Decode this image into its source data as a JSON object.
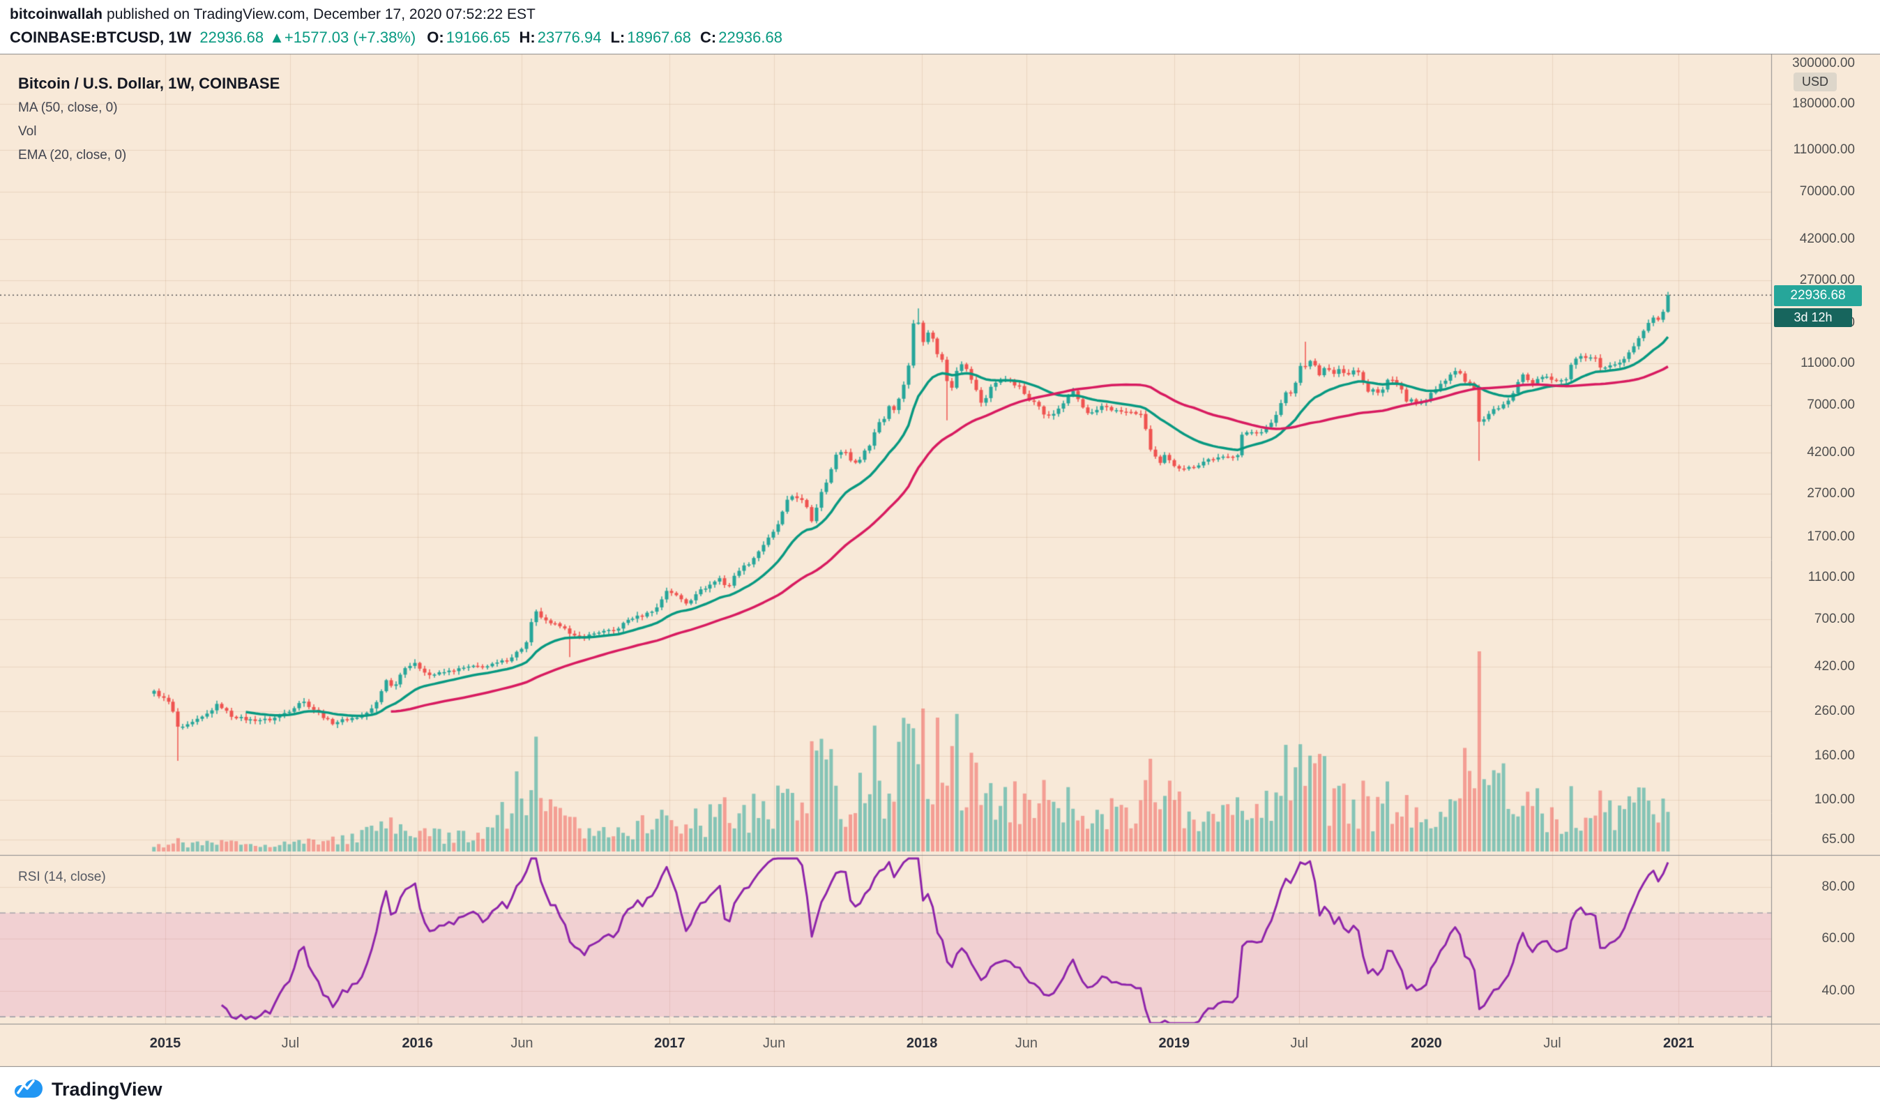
{
  "header": {
    "author": "bitcoinwallah",
    "published_text": "published on TradingView.com, December 17, 2020 07:52:22 EST",
    "symbol_text": "COINBASE:BTCUSD, 1W",
    "last_price": "22936.68",
    "arrow": "▲",
    "change_text": "+1577.03 (+7.38%)",
    "ohlc": [
      {
        "label": "O:",
        "value": "19166.65"
      },
      {
        "label": "H:",
        "value": "23776.94"
      },
      {
        "label": "L:",
        "value": "18967.68"
      },
      {
        "label": "C:",
        "value": "22936.68"
      }
    ]
  },
  "legend": {
    "title": "Bitcoin / U.S. Dollar, 1W, COINBASE",
    "studies": [
      "MA (50, close, 0)",
      "Vol",
      "EMA (20, close, 0)"
    ]
  },
  "rsi_pane": {
    "label": "RSI (14, close)"
  },
  "price_axis": {
    "currency": "USD"
  },
  "badges": {
    "price": "22936.68",
    "countdown": "3d 12h"
  },
  "footer": {
    "brand": "TradingView"
  },
  "colors": {
    "bg": "#f8e9d8",
    "grid": "rgba(136,85,34,0.12)",
    "frame": "#8c8c8c",
    "up": "#26a69a",
    "down": "#ef5350",
    "vol_up": "rgba(38,166,154,0.55)",
    "vol_down": "rgba(239,83,80,0.5)",
    "ema": "#089981",
    "ma": "#d81b60",
    "rsi": "#8e24aa",
    "rsi_band_fill": "rgba(208,92,183,0.18)",
    "band_line": "#9598a1",
    "dotted_line": "#555555",
    "accent_teal": "#089981",
    "badge_price_bg": "#26a69a",
    "badge_countdown_bg": "#17655d",
    "axis_text": "#4f4f4f",
    "logo_blue": "#2196f3"
  },
  "chart_data": {
    "type": "candlestick",
    "symbol": "COINBASE:BTCUSD",
    "interval": "1W",
    "log_scale": true,
    "panes": [
      "price+volume+MA50+EMA20",
      "RSI14"
    ],
    "last_candle": {
      "open": 19166.65,
      "high": 23776.94,
      "low": 18967.68,
      "close": 22936.68
    },
    "last_change": {
      "abs": 1577.03,
      "pct": 7.38
    },
    "series_start": 2014.955,
    "series_end": 2020.962,
    "price_axis_ticks": [
      300000,
      180000,
      110000,
      70000,
      42000,
      27000,
      17000,
      11000,
      7000,
      4200,
      2700,
      1700,
      1100,
      700,
      420,
      260,
      160,
      100,
      65
    ],
    "rsi": {
      "period": 14,
      "band": [
        30,
        70
      ],
      "ticks": [
        80,
        60,
        40
      ]
    },
    "time_axis": [
      {
        "label": "2015",
        "t": 2015.0,
        "major": true
      },
      {
        "label": "Jul",
        "t": 2015.496,
        "major": false
      },
      {
        "label": "2016",
        "t": 2016.0,
        "major": true
      },
      {
        "label": "Jun",
        "t": 2016.414,
        "major": false
      },
      {
        "label": "2017",
        "t": 2017.0,
        "major": true
      },
      {
        "label": "Jun",
        "t": 2017.414,
        "major": false
      },
      {
        "label": "2018",
        "t": 2018.0,
        "major": true
      },
      {
        "label": "Jun",
        "t": 2018.414,
        "major": false
      },
      {
        "label": "2019",
        "t": 2019.0,
        "major": true
      },
      {
        "label": "Jul",
        "t": 2019.496,
        "major": false
      },
      {
        "label": "2020",
        "t": 2020.0,
        "major": true
      },
      {
        "label": "Jul",
        "t": 2020.499,
        "major": false
      },
      {
        "label": "2021",
        "t": 2021.0,
        "major": true
      }
    ],
    "weekly_close_anchors": [
      [
        2014.955,
        320
      ],
      [
        2015.02,
        282
      ],
      [
        2015.055,
        212
      ],
      [
        2015.1,
        226
      ],
      [
        2015.16,
        248
      ],
      [
        2015.21,
        281
      ],
      [
        2015.26,
        247
      ],
      [
        2015.33,
        236
      ],
      [
        2015.42,
        237
      ],
      [
        2015.5,
        264
      ],
      [
        2015.54,
        292
      ],
      [
        2015.6,
        258
      ],
      [
        2015.66,
        228
      ],
      [
        2015.72,
        238
      ],
      [
        2015.78,
        246
      ],
      [
        2015.83,
        272
      ],
      [
        2015.86,
        330
      ],
      [
        2015.88,
        376
      ],
      [
        2015.9,
        328
      ],
      [
        2015.95,
        418
      ],
      [
        2015.99,
        431
      ],
      [
        2016.05,
        382
      ],
      [
        2016.12,
        398
      ],
      [
        2016.2,
        417
      ],
      [
        2016.28,
        421
      ],
      [
        2016.36,
        453
      ],
      [
        2016.43,
        532
      ],
      [
        2016.455,
        700
      ],
      [
        2016.47,
        752
      ],
      [
        2016.52,
        662
      ],
      [
        2016.58,
        655
      ],
      [
        2016.61,
        580
      ],
      [
        2016.66,
        577
      ],
      [
        2016.72,
        610
      ],
      [
        2016.78,
        616
      ],
      [
        2016.84,
        702
      ],
      [
        2016.9,
        731
      ],
      [
        2016.95,
        792
      ],
      [
        2016.99,
        963
      ],
      [
        2017.03,
        892
      ],
      [
        2017.07,
        824
      ],
      [
        2017.1,
        921
      ],
      [
        2017.16,
        1012
      ],
      [
        2017.2,
        1088
      ],
      [
        2017.23,
        972
      ],
      [
        2017.27,
        1182
      ],
      [
        2017.32,
        1292
      ],
      [
        2017.37,
        1554
      ],
      [
        2017.41,
        1777
      ],
      [
        2017.44,
        2052
      ],
      [
        2017.46,
        2446
      ],
      [
        2017.49,
        2655
      ],
      [
        2017.52,
        2552
      ],
      [
        2017.55,
        2254
      ],
      [
        2017.565,
        1992
      ],
      [
        2017.6,
        2752
      ],
      [
        2017.63,
        3252
      ],
      [
        2017.66,
        4105
      ],
      [
        2017.69,
        4352
      ],
      [
        2017.72,
        3852
      ],
      [
        2017.74,
        3702
      ],
      [
        2017.78,
        4402
      ],
      [
        2017.8,
        4602
      ],
      [
        2017.82,
        5702
      ],
      [
        2017.84,
        5982
      ],
      [
        2017.86,
        6152
      ],
      [
        2017.875,
        7402
      ],
      [
        2017.895,
        6502
      ],
      [
        2017.915,
        8002
      ],
      [
        2017.935,
        9302
      ],
      [
        2017.95,
        11252
      ],
      [
        2017.965,
        16650
      ],
      [
        2017.98,
        19052
      ],
      [
        2017.995,
        13882
      ],
      [
        2018.01,
        14152
      ],
      [
        2018.03,
        16202
      ],
      [
        2018.05,
        13252
      ],
      [
        2018.07,
        11602
      ],
      [
        2018.09,
        11232
      ],
      [
        2018.105,
        8272
      ],
      [
        2018.12,
        8572
      ],
      [
        2018.14,
        10402
      ],
      [
        2018.16,
        11102
      ],
      [
        2018.185,
        9902
      ],
      [
        2018.21,
        8502
      ],
      [
        2018.24,
        6952
      ],
      [
        2018.27,
        8502
      ],
      [
        2018.3,
        9002
      ],
      [
        2018.33,
        9352
      ],
      [
        2018.36,
        8802
      ],
      [
        2018.39,
        8502
      ],
      [
        2018.42,
        7502
      ],
      [
        2018.45,
        7352
      ],
      [
        2018.48,
        6402
      ],
      [
        2018.51,
        6152
      ],
      [
        2018.54,
        6752
      ],
      [
        2018.57,
        7402
      ],
      [
        2018.6,
        8202
      ],
      [
        2018.63,
        7002
      ],
      [
        2018.66,
        6302
      ],
      [
        2018.69,
        6502
      ],
      [
        2018.72,
        7052
      ],
      [
        2018.75,
        6702
      ],
      [
        2018.78,
        6552
      ],
      [
        2018.81,
        6502
      ],
      [
        2018.84,
        6452
      ],
      [
        2018.865,
        6402
      ],
      [
        2018.885,
        5552
      ],
      [
        2018.905,
        4352
      ],
      [
        2018.925,
        4002
      ],
      [
        2018.945,
        3702
      ],
      [
        2018.965,
        4102
      ],
      [
        2018.985,
        3802
      ],
      [
        2019.01,
        3602
      ],
      [
        2019.05,
        3552
      ],
      [
        2019.09,
        3652
      ],
      [
        2019.13,
        3902
      ],
      [
        2019.17,
        3952
      ],
      [
        2019.21,
        4002
      ],
      [
        2019.25,
        4102
      ],
      [
        2019.27,
        5102
      ],
      [
        2019.31,
        5252
      ],
      [
        2019.35,
        5302
      ],
      [
        2019.39,
        5802
      ],
      [
        2019.42,
        7002
      ],
      [
        2019.44,
        8052
      ],
      [
        2019.46,
        8002
      ],
      [
        2019.48,
        8852
      ],
      [
        2019.5,
        10752
      ],
      [
        2019.52,
        10602
      ],
      [
        2019.54,
        11352
      ],
      [
        2019.56,
        10602
      ],
      [
        2019.58,
        9502
      ],
      [
        2019.6,
        10652
      ],
      [
        2019.63,
        9852
      ],
      [
        2019.66,
        10302
      ],
      [
        2019.69,
        9602
      ],
      [
        2019.71,
        10352
      ],
      [
        2019.74,
        9702
      ],
      [
        2019.76,
        8102
      ],
      [
        2019.79,
        8202
      ],
      [
        2019.82,
        8052
      ],
      [
        2019.84,
        9252
      ],
      [
        2019.87,
        9152
      ],
      [
        2019.9,
        8502
      ],
      [
        2019.92,
        7352
      ],
      [
        2019.94,
        7552
      ],
      [
        2019.96,
        7202
      ],
      [
        2019.98,
        7252
      ],
      [
        2020.0,
        7352
      ],
      [
        2020.02,
        8052
      ],
      [
        2020.04,
        8302
      ],
      [
        2020.06,
        8902
      ],
      [
        2020.08,
        9352
      ],
      [
        2020.1,
        9902
      ],
      [
        2020.12,
        10152
      ],
      [
        2020.14,
        9652
      ],
      [
        2020.16,
        8602
      ],
      [
        2020.18,
        8902
      ],
      [
        2020.195,
        8052
      ],
      [
        2020.215,
        5352
      ],
      [
        2020.235,
        6202
      ],
      [
        2020.255,
        6452
      ],
      [
        2020.275,
        6752
      ],
      [
        2020.295,
        6852
      ],
      [
        2020.315,
        7102
      ],
      [
        2020.335,
        7552
      ],
      [
        2020.355,
        8752
      ],
      [
        2020.375,
        9652
      ],
      [
        2020.395,
        9552
      ],
      [
        2020.415,
        8802
      ],
      [
        2020.435,
        9152
      ],
      [
        2020.455,
        9452
      ],
      [
        2020.475,
        9702
      ],
      [
        2020.495,
        9152
      ],
      [
        2020.515,
        9052
      ],
      [
        2020.535,
        9152
      ],
      [
        2020.555,
        9202
      ],
      [
        2020.575,
        11002
      ],
      [
        2020.595,
        11752
      ],
      [
        2020.615,
        11852
      ],
      [
        2020.635,
        11652
      ],
      [
        2020.655,
        11902
      ],
      [
        2020.675,
        11402
      ],
      [
        2020.695,
        10252
      ],
      [
        2020.715,
        10552
      ],
      [
        2020.735,
        10702
      ],
      [
        2020.755,
        10952
      ],
      [
        2020.775,
        11352
      ],
      [
        2020.795,
        11902
      ],
      [
        2020.815,
        13052
      ],
      [
        2020.835,
        13802
      ],
      [
        2020.855,
        15502
      ],
      [
        2020.875,
        16302
      ],
      [
        2020.895,
        18652
      ],
      [
        2020.915,
        17152
      ],
      [
        2020.935,
        19152
      ],
      [
        2020.945,
        19166.65
      ],
      [
        2020.962,
        22936.68
      ]
    ],
    "notable_wicks": [
      {
        "t": 2015.055,
        "low": 152
      },
      {
        "t": 2016.61,
        "low": 465
      },
      {
        "t": 2017.98,
        "high": 19891
      },
      {
        "t": 2018.105,
        "low": 5950
      },
      {
        "t": 2019.52,
        "high": 13880
      },
      {
        "t": 2020.215,
        "low": 3850
      }
    ],
    "volume_profile": [
      [
        2014.955,
        0.1
      ],
      [
        2015.6,
        0.13
      ],
      [
        2015.9,
        0.3
      ],
      [
        2016.2,
        0.22
      ],
      [
        2016.46,
        0.85
      ],
      [
        2016.6,
        0.35
      ],
      [
        2017.0,
        0.4
      ],
      [
        2017.4,
        0.55
      ],
      [
        2017.6,
        0.75
      ],
      [
        2017.9,
        0.85
      ],
      [
        2018.0,
        1.0
      ],
      [
        2018.2,
        0.8
      ],
      [
        2018.45,
        0.6
      ],
      [
        2018.7,
        0.45
      ],
      [
        2018.9,
        0.85
      ],
      [
        2019.15,
        0.45
      ],
      [
        2019.4,
        0.8
      ],
      [
        2019.55,
        0.85
      ],
      [
        2019.8,
        0.55
      ],
      [
        2020.05,
        0.5
      ],
      [
        2020.21,
        1.05
      ],
      [
        2020.4,
        0.6
      ],
      [
        2020.65,
        0.5
      ],
      [
        2020.85,
        0.6
      ],
      [
        2020.962,
        0.7
      ]
    ]
  }
}
